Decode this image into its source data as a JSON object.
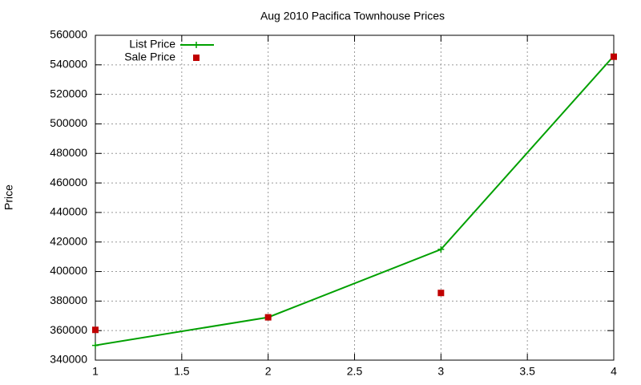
{
  "chart_data": {
    "type": "line",
    "title": "Aug 2010 Pacifica Townhouse Prices",
    "y_label": "Price",
    "x": [
      1,
      2,
      3,
      4
    ],
    "series": [
      {
        "name": "List Price",
        "color": "#00a000",
        "mode": "lines+points",
        "marker": "plus",
        "values": [
          350000,
          369000,
          415000,
          546000
        ]
      },
      {
        "name": "Sale Price",
        "color": "#c00000",
        "mode": "points",
        "marker": "square",
        "values": [
          360500,
          369000,
          385500,
          545500
        ]
      }
    ],
    "xlim": [
      1,
      4
    ],
    "xticks": [
      1,
      1.5,
      2,
      2.5,
      3,
      3.5,
      4
    ],
    "ylim": [
      340000,
      560000
    ],
    "yticks": [
      340000,
      360000,
      380000,
      400000,
      420000,
      440000,
      460000,
      480000,
      500000,
      520000,
      540000,
      560000
    ],
    "grid": true,
    "legend": "top-left"
  }
}
